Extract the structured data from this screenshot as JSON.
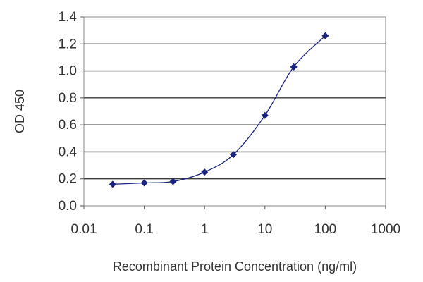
{
  "chart_data": {
    "type": "scatter",
    "title": "",
    "xlabel": "Recombinant Protein Concentration (ng/ml)",
    "ylabel": "OD 450",
    "x_scale": "log",
    "xlim": [
      0.01,
      1000
    ],
    "ylim": [
      0.0,
      1.4
    ],
    "x_ticks": [
      "0.01",
      "0.1",
      "1",
      "10",
      "100",
      "1000"
    ],
    "y_ticks": [
      "0.0",
      "0.2",
      "0.4",
      "0.6",
      "0.8",
      "1.0",
      "1.2",
      "1.4"
    ],
    "grid": "horizontal",
    "legend": "none",
    "fit_curve": true,
    "series": [
      {
        "color": "#1a237e",
        "x": [
          0.03,
          0.1,
          0.3,
          1,
          3,
          10,
          30,
          100
        ],
        "y": [
          0.16,
          0.17,
          0.18,
          0.25,
          0.38,
          0.67,
          1.03,
          1.26
        ]
      }
    ]
  }
}
